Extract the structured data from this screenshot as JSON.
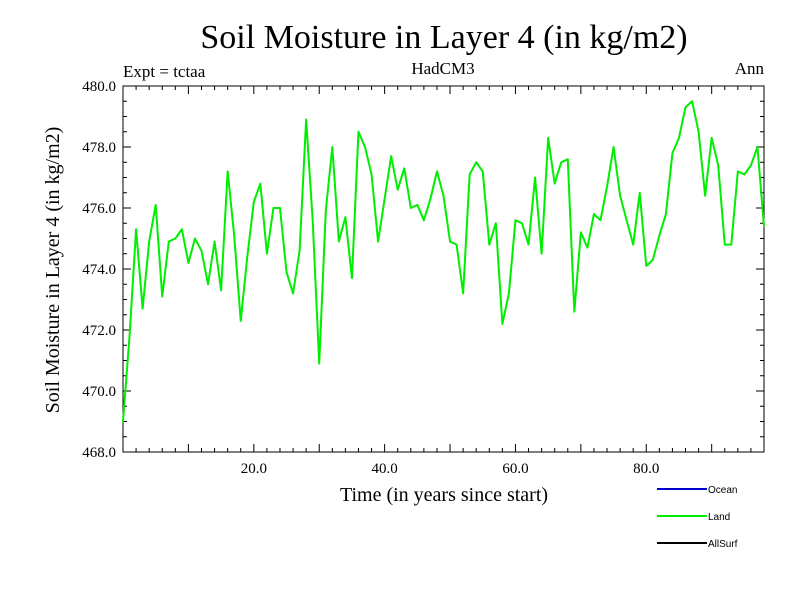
{
  "title": "Soil Moisture in Layer 4 (in kg/m2)",
  "subtitle_left": "Expt = tctaa",
  "subtitle_center": "HadCM3",
  "subtitle_right": "Ann",
  "chart_data": {
    "type": "line",
    "xlabel": "Time (in years since start)",
    "ylabel": "Soil Moisture in Layer 4 (in kg/m2)",
    "xlim": [
      0,
      98
    ],
    "ylim": [
      468.0,
      480.0
    ],
    "x_ticks": [
      20,
      40,
      60,
      80
    ],
    "x_tick_labels": [
      "20.0",
      "40.0",
      "60.0",
      "80.0"
    ],
    "y_ticks": [
      468,
      470,
      472,
      474,
      476,
      478,
      480
    ],
    "y_tick_labels": [
      "468.0",
      "470.0",
      "472.0",
      "474.0",
      "476.0",
      "478.0",
      "480.0"
    ],
    "grid": false,
    "legend_position": "bottom-right",
    "legend": [
      {
        "name": "Ocean",
        "color": "#0000cc"
      },
      {
        "name": "Land",
        "color": "#00ee00"
      },
      {
        "name": "AllSurf",
        "color": "#000000"
      }
    ],
    "series": [
      {
        "name": "Land",
        "color": "#00ee00",
        "x": [
          0,
          1,
          2,
          3,
          4,
          5,
          6,
          7,
          8,
          9,
          10,
          11,
          12,
          13,
          14,
          15,
          16,
          17,
          18,
          19,
          20,
          21,
          22,
          23,
          24,
          25,
          26,
          27,
          28,
          29,
          30,
          31,
          32,
          33,
          34,
          35,
          36,
          37,
          38,
          39,
          40,
          41,
          42,
          43,
          44,
          45,
          46,
          47,
          48,
          49,
          50,
          51,
          52,
          53,
          54,
          55,
          56,
          57,
          58,
          59,
          60,
          61,
          62,
          63,
          64,
          65,
          66,
          67,
          68,
          69,
          70,
          71,
          72,
          73,
          74,
          75,
          76,
          77,
          78,
          79,
          80,
          81,
          82,
          83,
          84,
          85,
          86,
          87,
          88,
          89,
          90,
          91,
          92,
          93,
          94,
          95,
          96,
          97,
          98
        ],
        "values": [
          469.0,
          471.8,
          475.3,
          472.7,
          474.9,
          476.1,
          473.1,
          474.9,
          475.0,
          475.3,
          474.2,
          475.0,
          474.6,
          473.5,
          474.9,
          473.3,
          477.2,
          475.1,
          472.3,
          474.4,
          476.2,
          476.8,
          474.5,
          476.0,
          476.0,
          473.9,
          473.2,
          474.6,
          478.9,
          475.6,
          470.9,
          475.9,
          478.0,
          474.9,
          475.7,
          473.7,
          478.5,
          478.0,
          477.1,
          474.9,
          476.3,
          477.7,
          476.6,
          477.3,
          476.0,
          476.1,
          475.6,
          476.3,
          477.2,
          476.4,
          474.9,
          474.8,
          473.2,
          477.1,
          477.5,
          477.2,
          474.8,
          475.5,
          472.2,
          473.2,
          475.6,
          475.5,
          474.8,
          477.0,
          474.5,
          478.3,
          476.8,
          477.5,
          477.6,
          472.6,
          475.2,
          474.7,
          475.8,
          475.6,
          476.7,
          478.0,
          476.4,
          475.6,
          474.8,
          476.5,
          474.1,
          474.3,
          475.1,
          475.8,
          477.8,
          478.3,
          479.3,
          479.5,
          478.5,
          476.4,
          478.3,
          477.4,
          474.8,
          474.8,
          477.2,
          477.1,
          477.4,
          478.0,
          475.4
        ]
      }
    ]
  }
}
